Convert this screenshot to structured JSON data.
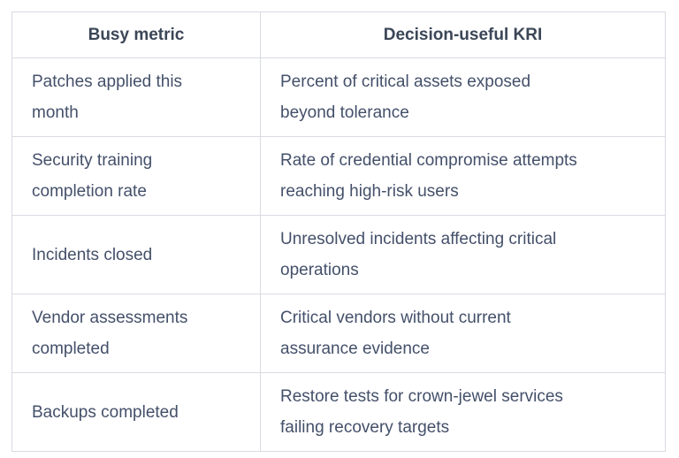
{
  "colors": {
    "background": "#ffffff",
    "border": "#d9dbe2",
    "header_text": "#3b4657",
    "body_text": "#44506a"
  },
  "table": {
    "columns": [
      {
        "label": "Busy metric"
      },
      {
        "label": "Decision-useful KRI"
      }
    ],
    "rows": [
      {
        "busy_metric": "Patches applied this\nmonth",
        "kri": "Percent of critical assets exposed\nbeyond tolerance"
      },
      {
        "busy_metric": "Security training\ncompletion rate",
        "kri": "Rate of credential compromise attempts\nreaching high-risk users"
      },
      {
        "busy_metric": "Incidents closed",
        "kri": "Unresolved incidents affecting critical\noperations"
      },
      {
        "busy_metric": "Vendor assessments\ncompleted",
        "kri": "Critical vendors without current\nassurance evidence"
      },
      {
        "busy_metric": "Backups completed",
        "kri": "Restore tests for crown-jewel services\nfailing recovery targets"
      }
    ]
  }
}
